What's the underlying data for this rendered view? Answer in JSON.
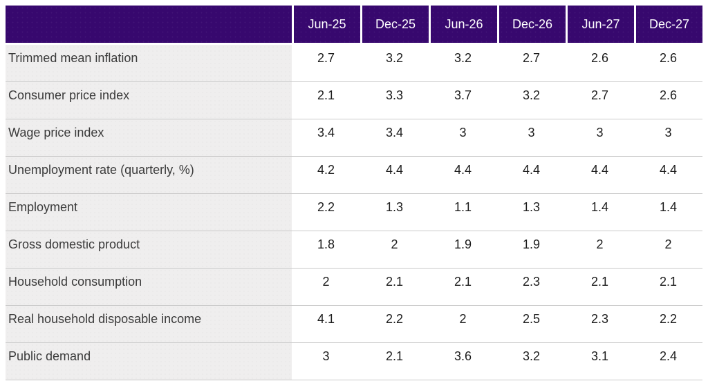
{
  "chart_data": {
    "type": "table",
    "title": "",
    "columns": [
      "Jun-25",
      "Dec-25",
      "Jun-26",
      "Dec-26",
      "Jun-27",
      "Dec-27"
    ],
    "rows": [
      {
        "label": "Trimmed mean inflation",
        "values": [
          "2.7",
          "3.2",
          "3.2",
          "2.7",
          "2.6",
          "2.6"
        ]
      },
      {
        "label": "Consumer price index",
        "values": [
          "2.1",
          "3.3",
          "3.7",
          "3.2",
          "2.7",
          "2.6"
        ]
      },
      {
        "label": "Wage price index",
        "values": [
          "3.4",
          "3.4",
          "3",
          "3",
          "3",
          "3"
        ]
      },
      {
        "label": "Unemployment rate (quarterly, %)",
        "values": [
          "4.2",
          "4.4",
          "4.4",
          "4.4",
          "4.4",
          "4.4"
        ]
      },
      {
        "label": "Employment",
        "values": [
          "2.2",
          "1.3",
          "1.1",
          "1.3",
          "1.4",
          "1.4"
        ]
      },
      {
        "label": "Gross domestic product",
        "values": [
          "1.8",
          "2",
          "1.9",
          "1.9",
          "2",
          "2"
        ]
      },
      {
        "label": "Household consumption",
        "values": [
          "2",
          "2.1",
          "2.1",
          "2.3",
          "2.1",
          "2.1"
        ]
      },
      {
        "label": "Real household disposable income",
        "values": [
          "4.1",
          "2.2",
          "2",
          "2.5",
          "2.3",
          "2.2"
        ]
      },
      {
        "label": "Public demand",
        "values": [
          "3",
          "2.1",
          "3.6",
          "3.2",
          "3.1",
          "2.4"
        ]
      }
    ],
    "layout": {
      "header_corner_cell": "",
      "grid": "horizontal row separators only, white gaps between header cells"
    },
    "colors": {
      "header_bg": "#37086e",
      "header_text": "#ffffff",
      "label_bg": "#efeeee",
      "value_bg": "#ffffff",
      "row_border": "#c9c9c9",
      "label_text": "#3a3a3a",
      "value_text": "#1c1c1c"
    }
  }
}
